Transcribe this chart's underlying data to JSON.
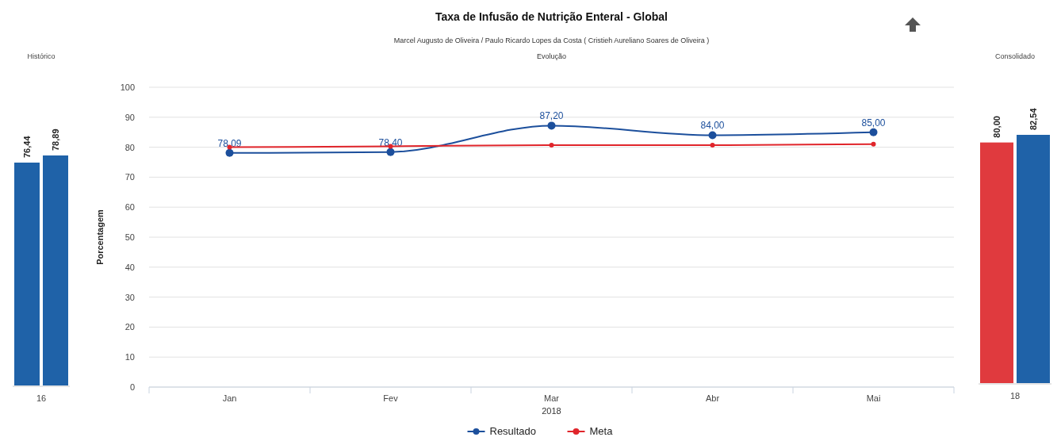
{
  "chart_data": [
    {
      "type": "bar",
      "title": "Histórico",
      "categories": [
        "16"
      ],
      "series": [
        {
          "color": "#1f62a8",
          "values": [
            76.44
          ],
          "value_labels": [
            "76,44"
          ]
        },
        {
          "color": "#1f62a8",
          "values": [
            78.89
          ],
          "value_labels": [
            "78,89"
          ]
        }
      ],
      "legend": false
    },
    {
      "type": "line",
      "title": "Taxa de Infusão de Nutrição Enteral - Global",
      "subtitle": "Marcel Augusto de Oliveira / Paulo Ricardo Lopes da Costa ( Cristieh Aureliano Soares de Oliveira )",
      "annotations": [
        "Evolução"
      ],
      "xlabel": "2018",
      "ylabel": "Porcentagem",
      "categories": [
        "Jan",
        "Fev",
        "Mar",
        "Abr",
        "Mai"
      ],
      "series": [
        {
          "name": "Resultado",
          "color": "#1c4f9c",
          "values": [
            78.09,
            78.4,
            87.2,
            84.0,
            85.0
          ],
          "value_labels": [
            "78,09",
            "78,40",
            "87,20",
            "84,00",
            "85,00"
          ]
        },
        {
          "name": "Meta",
          "color": "#e0252b",
          "values": [
            80.0,
            80.3,
            80.7,
            80.7,
            81.0
          ]
        }
      ],
      "ylim": [
        0,
        100
      ],
      "yticks": [
        0,
        10,
        20,
        30,
        40,
        50,
        60,
        70,
        80,
        90,
        100
      ],
      "grid": "y",
      "legend": "bottom",
      "marker": "circle",
      "line_style": "solid"
    },
    {
      "type": "bar",
      "title": "Consolidado",
      "categories": [
        "18"
      ],
      "series": [
        {
          "color": "#e03a3e",
          "values": [
            80.0
          ],
          "value_labels": [
            "80,00"
          ]
        },
        {
          "color": "#1f62a8",
          "values": [
            82.54
          ],
          "value_labels": [
            "82,54"
          ]
        }
      ],
      "legend": false
    }
  ]
}
